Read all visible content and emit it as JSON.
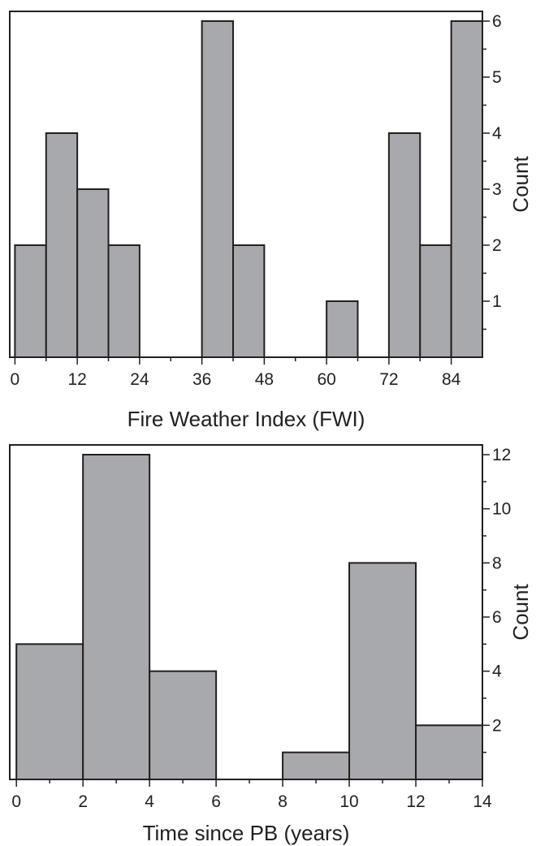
{
  "chart_data": [
    {
      "type": "bar",
      "title": "",
      "xlabel": "Fire Weather Index (FWI)",
      "ylabel": "Count",
      "bin_edges": [
        0,
        6,
        12,
        18,
        24,
        30,
        36,
        42,
        48,
        54,
        60,
        66,
        72,
        78,
        84,
        90
      ],
      "values": [
        2,
        4,
        3,
        2,
        0,
        0,
        6,
        2,
        0,
        0,
        1,
        0,
        4,
        2,
        6
      ],
      "xlim": [
        -1,
        90
      ],
      "ylim": [
        0,
        6
      ],
      "x_tick_labels": [
        "0",
        "12",
        "24",
        "36",
        "48",
        "60",
        "72",
        "84"
      ],
      "y_tick_labels": [
        "1",
        "2",
        "3",
        "4",
        "5",
        "6"
      ],
      "y_axis_side": "right",
      "grid": false,
      "bar_color": "#a7a9ac"
    },
    {
      "type": "bar",
      "title": "",
      "xlabel": "Time since PB (years)",
      "ylabel": "Count",
      "bin_edges": [
        0,
        2,
        4,
        6,
        8,
        10,
        12,
        14
      ],
      "values": [
        5,
        12,
        4,
        0,
        1,
        8,
        2
      ],
      "xlim": [
        -0.2,
        14
      ],
      "ylim": [
        0,
        12
      ],
      "x_tick_labels": [
        "0",
        "2",
        "4",
        "6",
        "8",
        "10",
        "12",
        "14"
      ],
      "y_tick_labels": [
        "2",
        "4",
        "6",
        "8",
        "10",
        "12"
      ],
      "y_axis_side": "right",
      "grid": false,
      "bar_color": "#a7a9ac"
    }
  ]
}
